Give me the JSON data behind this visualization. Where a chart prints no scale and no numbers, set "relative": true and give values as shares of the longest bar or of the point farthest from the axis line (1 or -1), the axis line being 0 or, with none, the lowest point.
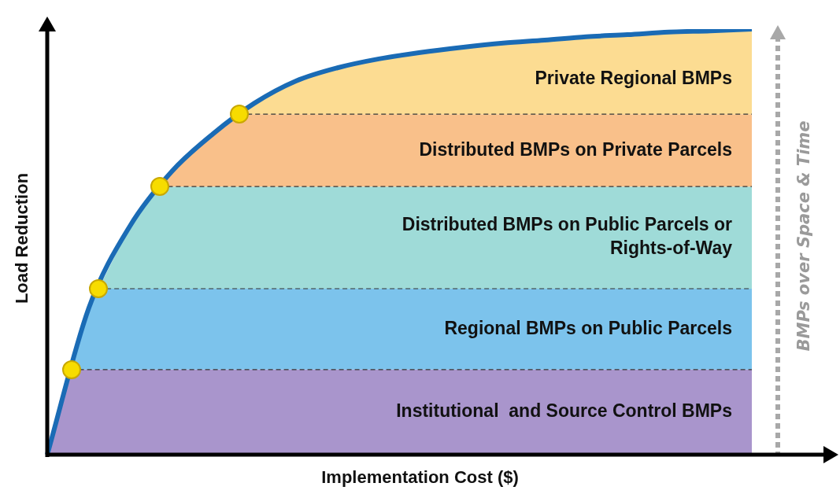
{
  "chart_data": {
    "type": "line",
    "xlabel": "Implementation Cost ($)",
    "ylabel": "Load Reduction",
    "relative": true,
    "tick_labels": false,
    "categories": [
      null,
      null,
      null,
      null,
      null,
      null,
      null,
      null,
      null,
      null,
      null,
      null,
      null,
      null,
      null,
      null,
      null,
      null
    ],
    "series": [
      {
        "color": "#1a6bb5",
        "values": [
          0,
          0.344,
          0.538,
          0.665,
          0.754,
          0.826,
          0.878,
          0.909,
          0.93,
          0.945,
          0.957,
          0.967,
          0.974,
          0.982,
          0.987,
          0.993,
          0.996,
          1
        ]
      }
    ],
    "bands": [
      {
        "axis": "y",
        "from": 0,
        "to": 0.2,
        "label": "Institutional  and Source Control BMPs",
        "color": "#a995cc"
      },
      {
        "axis": "y",
        "from": 0.2,
        "to": 0.39,
        "label": "Regional BMPs on Public Parcels",
        "color": "#7cc3ec"
      },
      {
        "axis": "y",
        "from": 0.39,
        "to": 0.63,
        "label": "Distributed BMPs on Public Parcels or Rights-of-Way",
        "color": "#9fdbd8"
      },
      {
        "axis": "y",
        "from": 0.63,
        "to": 0.8,
        "label": "Distributed BMPs on Private Parcels",
        "color": "#f9c08a"
      },
      {
        "axis": "y",
        "from": 0.8,
        "to": 1,
        "label": "Private Regional BMPs",
        "color": "#fcdc92"
      }
    ],
    "annotations": [
      "BMPs over Space & Time"
    ]
  }
}
